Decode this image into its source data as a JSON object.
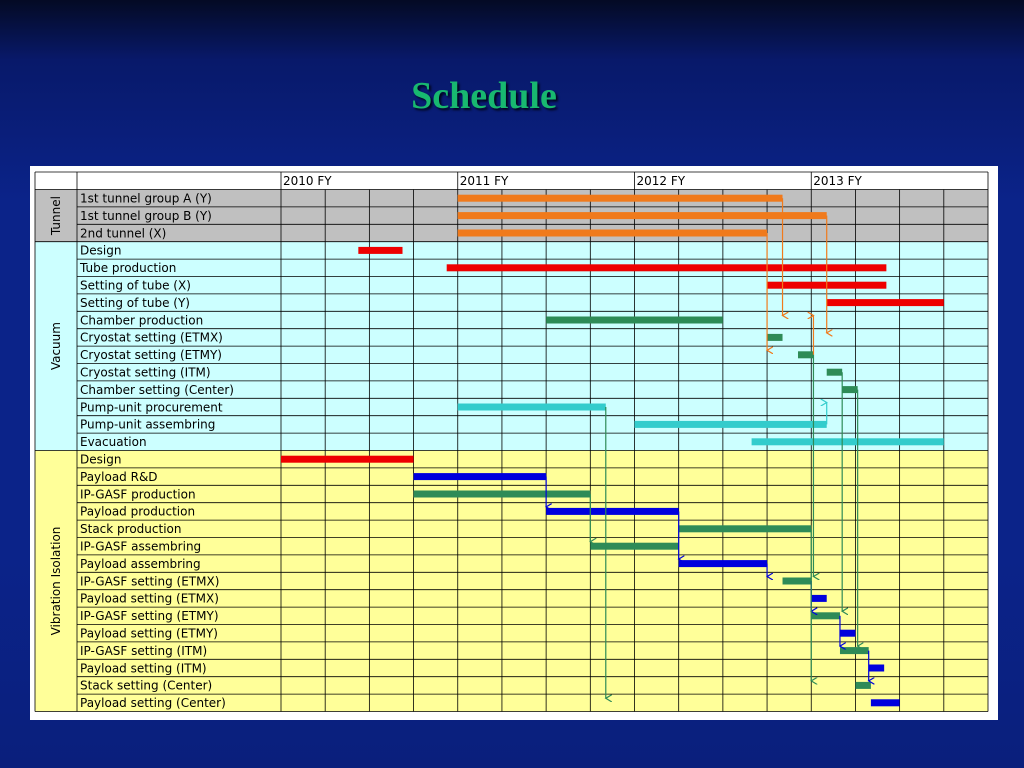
{
  "title": "Schedule",
  "chart_data": {
    "type": "gantt",
    "time_unit": "quarter",
    "years": [
      {
        "label": "2010 FY",
        "start": 0
      },
      {
        "label": "2011 FY",
        "start": 4
      },
      {
        "label": "2012 FY",
        "start": 8
      },
      {
        "label": "2013 FY",
        "start": 12
      }
    ],
    "quarters_total": 16,
    "groups": [
      {
        "name": "Tunnel",
        "background": "#c0c0c0",
        "rows": [
          {
            "label": "1st tunnel group A (Y)",
            "start": 4.0,
            "end": 11.35,
            "color": "#f07a1c"
          },
          {
            "label": "1st tunnel group B (Y)",
            "start": 4.0,
            "end": 12.35,
            "color": "#f07a1c"
          },
          {
            "label": "2nd tunnel (X)",
            "start": 4.0,
            "end": 11.0,
            "color": "#f07a1c"
          }
        ]
      },
      {
        "name": "Vacuum",
        "background": "#ccffff",
        "rows": [
          {
            "label": "Design",
            "start": 1.75,
            "end": 2.75,
            "color": "#ee0000"
          },
          {
            "label": "Tube production",
            "start": 3.75,
            "end": 13.7,
            "color": "#ee0000"
          },
          {
            "label": "Setting of tube (X)",
            "start": 11.0,
            "end": 13.7,
            "color": "#ee0000"
          },
          {
            "label": "Setting of tube (Y)",
            "start": 12.35,
            "end": 15.0,
            "color": "#ee0000"
          },
          {
            "label": "Chamber production",
            "start": 6.0,
            "end": 10.0,
            "color": "#2e8b57"
          },
          {
            "label": "Cryostat setting (ETMX)",
            "start": 11.0,
            "end": 11.35,
            "color": "#2e8b57"
          },
          {
            "label": "Cryostat setting (ETMY)",
            "start": 11.7,
            "end": 12.05,
            "color": "#2e8b57"
          },
          {
            "label": "Cryostat setting (ITM)",
            "start": 12.35,
            "end": 12.7,
            "color": "#2e8b57"
          },
          {
            "label": "Chamber setting (Center)",
            "start": 12.7,
            "end": 13.05,
            "color": "#2e8b57"
          },
          {
            "label": "Pump-unit procurement",
            "start": 4.0,
            "end": 7.35,
            "color": "#33cccc"
          },
          {
            "label": "Pump-unit assembring",
            "start": 8.0,
            "end": 12.35,
            "color": "#33cccc"
          },
          {
            "label": "Evacuation",
            "start": 10.65,
            "end": 15.0,
            "color": "#33cccc"
          }
        ]
      },
      {
        "name": "Vibration Isolation",
        "background": "#ffff99",
        "rows": [
          {
            "label": "Design",
            "start": 0.0,
            "end": 3.0,
            "color": "#ee0000"
          },
          {
            "label": "Payload R&D",
            "start": 3.0,
            "end": 6.0,
            "color": "#0000dd"
          },
          {
            "label": "IP-GASF production",
            "start": 3.0,
            "end": 7.0,
            "color": "#2e8b57"
          },
          {
            "label": "Payload production",
            "start": 6.0,
            "end": 9.0,
            "color": "#0000dd"
          },
          {
            "label": "Stack production",
            "start": 9.0,
            "end": 12.0,
            "color": "#2e8b57"
          },
          {
            "label": "IP-GASF assembring",
            "start": 7.0,
            "end": 9.0,
            "color": "#2e8b57"
          },
          {
            "label": "Payload assembring",
            "start": 9.0,
            "end": 11.0,
            "color": "#0000dd"
          },
          {
            "label": "IP-GASF setting (ETMX)",
            "start": 11.35,
            "end": 12.0,
            "color": "#2e8b57"
          },
          {
            "label": "Payload setting (ETMX)",
            "start": 12.0,
            "end": 12.35,
            "color": "#0000dd"
          },
          {
            "label": "IP-GASF setting (ETMY)",
            "start": 12.0,
            "end": 12.65,
            "color": "#2e8b57"
          },
          {
            "label": "Payload setting (ETMY)",
            "start": 12.65,
            "end": 13.0,
            "color": "#0000dd"
          },
          {
            "label": "IP-GASF setting (ITM)",
            "start": 12.65,
            "end": 13.3,
            "color": "#2e8b57"
          },
          {
            "label": "Payload setting (ITM)",
            "start": 13.3,
            "end": 13.65,
            "color": "#0000dd"
          },
          {
            "label": "Stack setting (Center)",
            "start": 13.0,
            "end": 13.35,
            "color": "#2e8b57"
          },
          {
            "label": "Payload setting (Center)",
            "start": 13.35,
            "end": 14.0,
            "color": "#0000dd"
          }
        ]
      }
    ],
    "dependencies": [
      {
        "from": 0,
        "to": 7,
        "color": "#f07a1c"
      },
      {
        "from": 1,
        "to": 8,
        "color": "#f07a1c"
      },
      {
        "from": 2,
        "to": 9,
        "color": "#f07a1c"
      },
      {
        "from": 9,
        "to": 7,
        "color": "#f07a1c"
      },
      {
        "from": 13,
        "to": 12,
        "color": "#33cccc"
      },
      {
        "from": 16,
        "to": 18,
        "color": "#0000dd"
      },
      {
        "from": 17,
        "to": 20,
        "color": "#2e8b57"
      },
      {
        "from": 18,
        "to": 21,
        "color": "#0000dd"
      },
      {
        "from": 21,
        "to": 22,
        "color": "#0000dd"
      },
      {
        "from": 22,
        "to": 24,
        "color": "#0000dd"
      },
      {
        "from": 24,
        "to": 26,
        "color": "#0000dd"
      },
      {
        "from": 26,
        "to": 28,
        "color": "#0000dd"
      },
      {
        "from": 9,
        "to": 22,
        "color": "#2e8b57"
      },
      {
        "from": 10,
        "to": 24,
        "color": "#2e8b57"
      },
      {
        "from": 11,
        "to": 26,
        "color": "#2e8b57"
      },
      {
        "from": 19,
        "to": 28,
        "color": "#2e8b57"
      },
      {
        "from": 12,
        "to": 29,
        "color": "#2e8b57"
      }
    ],
    "colors": {
      "grid": "#000000",
      "header_background": "#ffffff"
    }
  }
}
